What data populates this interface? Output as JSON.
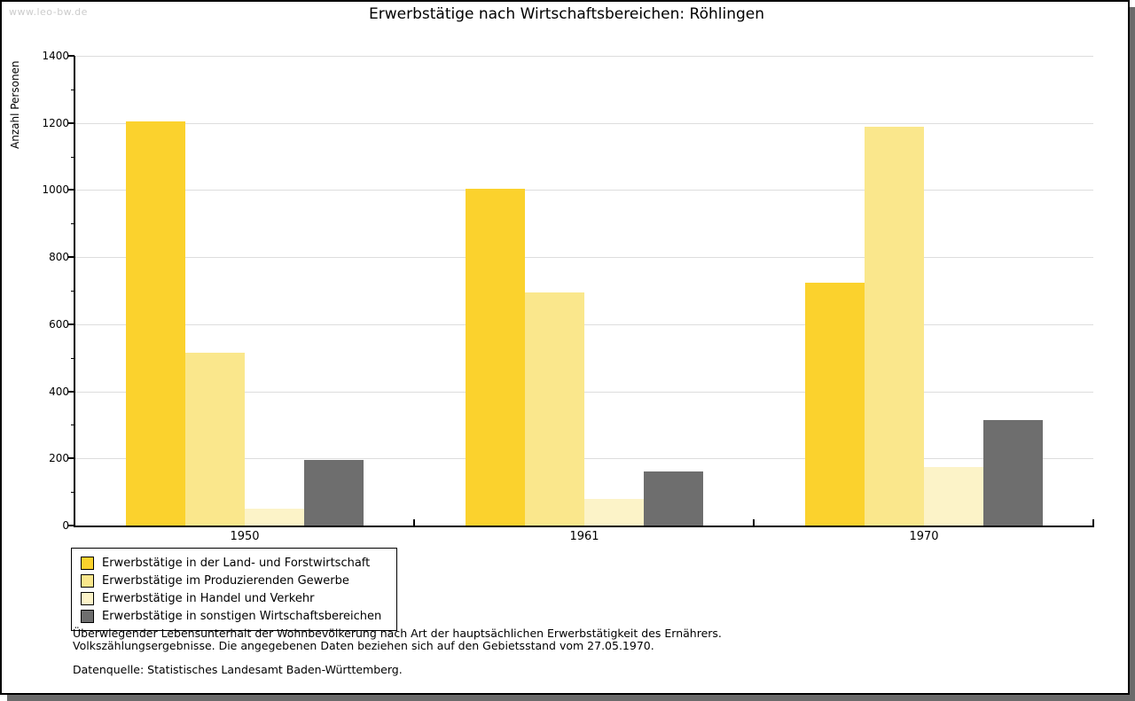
{
  "watermark": "www.leo-bw.de",
  "title": "Erwerbstätige nach Wirtschaftsbereichen: Röhlingen",
  "chart_data": {
    "type": "bar",
    "title": "Erwerbstätige nach Wirtschaftsbereichen: Röhlingen",
    "xlabel": "",
    "ylabel": "Anzahl Personen",
    "ylim": [
      0,
      1400
    ],
    "ytick_step": 200,
    "yminor_step": 100,
    "grid": true,
    "legend_position": "bottom-left",
    "categories": [
      "1950",
      "1961",
      "1970"
    ],
    "series": [
      {
        "name": "Erwerbstätige in der Land- und Forstwirtschaft",
        "color": "#FBD22D",
        "values": [
          1205,
          1005,
          725
        ]
      },
      {
        "name": "Erwerbstätige im Produzierenden Gewerbe",
        "color": "#FAE78C",
        "values": [
          515,
          695,
          1190
        ]
      },
      {
        "name": "Erwerbstätige in Handel und Verkehr",
        "color": "#FCF3C8",
        "values": [
          50,
          80,
          175
        ]
      },
      {
        "name": "Erwerbstätige in sonstigen Wirtschaftsbereichen",
        "color": "#6E6E6E",
        "values": [
          195,
          160,
          315
        ]
      }
    ]
  },
  "footer": {
    "line1": "Überwiegender Lebensunterhalt der Wohnbevölkerung nach Art der hauptsächlichen Erwerbstätigkeit des Ernährers.",
    "line2": "Volkszählungsergebnisse. Die angegebenen Daten beziehen sich auf den Gebietsstand vom 27.05.1970.",
    "source": "Datenquelle: Statistisches Landesamt Baden-Württemberg."
  }
}
